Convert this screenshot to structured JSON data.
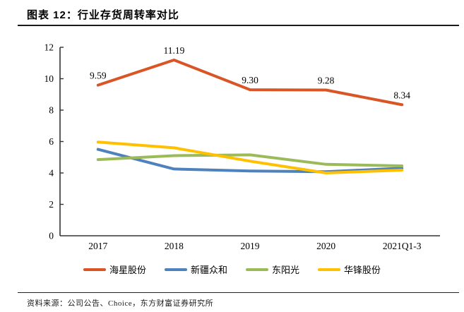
{
  "header": {
    "title": "图表 12：行业存货周转率对比"
  },
  "footer": {
    "source": "资料来源：公司公告、Choice，东方财富证券研究所"
  },
  "colors": {
    "axis": "#333333",
    "text": "#000000"
  },
  "chart_data": {
    "type": "line",
    "title": "图表 12：行业存货周转率对比",
    "categories": [
      "2017",
      "2018",
      "2019",
      "2020",
      "2021Q1-3"
    ],
    "series": [
      {
        "name": "海星股份",
        "color": "#D95526",
        "values": [
          9.59,
          11.19,
          9.3,
          9.28,
          8.34
        ],
        "data_labels": true
      },
      {
        "name": "新疆众和",
        "color": "#4F81BD",
        "values": [
          5.5,
          4.25,
          4.12,
          4.08,
          4.3
        ],
        "data_labels": false
      },
      {
        "name": "东阳光",
        "color": "#9BBB59",
        "values": [
          4.85,
          5.1,
          5.15,
          4.55,
          4.45
        ],
        "data_labels": false
      },
      {
        "name": "华锋股份",
        "color": "#FFC000",
        "values": [
          5.97,
          5.6,
          4.75,
          4.0,
          4.18
        ],
        "data_labels": false
      }
    ],
    "xlabel": "",
    "ylabel": "",
    "ylim": [
      0,
      12
    ],
    "ytick_step": 2,
    "grid": false,
    "legend_position": "bottom"
  }
}
